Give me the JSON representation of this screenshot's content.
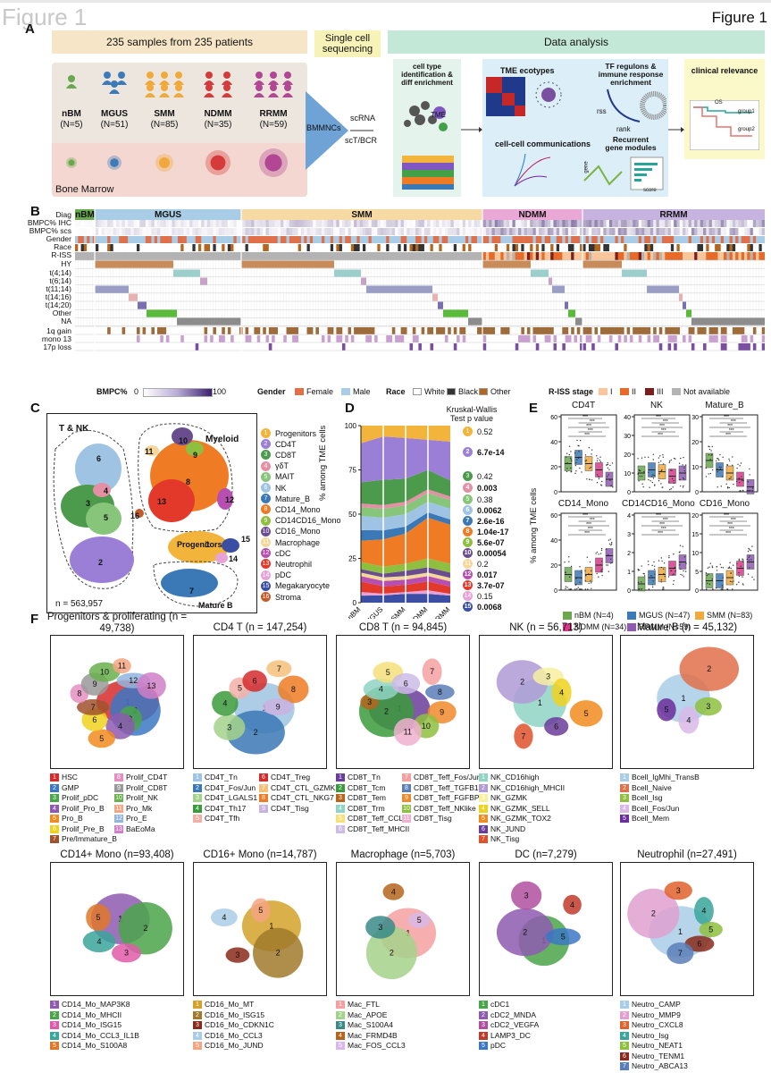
{
  "figure": {
    "title_left": "Figure 1",
    "title_right": "Figure 1"
  },
  "panelA": {
    "label": "A",
    "box1": "235 samples from 235 patients",
    "box2": "Single cell sequencing",
    "box3": "Data analysis",
    "groups": [
      {
        "name": "nBM",
        "n": "(N=5)",
        "color": "#6aa84f"
      },
      {
        "name": "MGUS",
        "n": "(N=51)",
        "color": "#3d7ab8"
      },
      {
        "name": "SMM",
        "n": "(N=85)",
        "color": "#f0a93a"
      },
      {
        "name": "NDMM",
        "n": "(N=35)",
        "color": "#d63b3b"
      },
      {
        "name": "RRMM",
        "n": "(N=59)",
        "color": "#b24793"
      }
    ],
    "bone_marrow": "Bone Marrow",
    "bmmnc": "BMMNCs",
    "scrna": "scRNA",
    "sctbcr": "scT/BCR",
    "cell_type": "cell type identification & diff enrichment",
    "tme_label": "TME",
    "tme_ecotypes": "TME ecotypes",
    "tf": "TF regulons & immune response enrichment",
    "rss": "rss",
    "rank": "rank",
    "cellcell": "cell-cell communications",
    "recurrent": "Recurrent gene modules",
    "gene": "gene",
    "score": "score",
    "clinical": "clinical relevance",
    "os": "OS",
    "group1": "group1",
    "group2": "group2"
  },
  "panelB": {
    "label": "B",
    "rows": [
      "Diag",
      "BMPC% IHC",
      "BMPC% scs",
      "Gender",
      "Race",
      "R-ISS",
      "HY",
      "t(4;14)",
      "t(6;14)",
      "t(11;14)",
      "t(14;16)",
      "t(14;20)",
      "Other",
      "NA",
      "1q gain",
      "mono 13",
      "17p loss"
    ],
    "diag": [
      "nBM",
      "MGUS",
      "SMM",
      "NDMM",
      "RRMM"
    ],
    "bmpc_title": "BMPC%",
    "bmpc_min": "0",
    "bmpc_max": "100",
    "gender_title": "Gender",
    "gender": [
      {
        "label": "Female",
        "color": "#e0704a"
      },
      {
        "label": "Male",
        "color": "#a9cde6"
      }
    ],
    "race_title": "Race",
    "race": [
      {
        "label": "White",
        "color": "#ffffff"
      },
      {
        "label": "Black",
        "color": "#333333"
      },
      {
        "label": "Other",
        "color": "#b5651d"
      }
    ],
    "riss_title": "R-ISS stage",
    "riss": [
      {
        "label": "I",
        "color": "#f9c59a"
      },
      {
        "label": "II",
        "color": "#e66b2b"
      },
      {
        "label": "III",
        "color": "#7a1f1f"
      },
      {
        "label": "Not available",
        "color": "#b3b3b3"
      }
    ]
  },
  "panelC": {
    "label": "C",
    "tnk": "T & NK",
    "myeloid": "Myeloid",
    "progenitors": "Progenitors",
    "matureb": "Mature B",
    "n": "n = 563,957",
    "clusters": [
      {
        "id": "1",
        "name": "Progenitors",
        "color": "#f2b43a"
      },
      {
        "id": "2",
        "name": "CD4T",
        "color": "#9b7fd6"
      },
      {
        "id": "3",
        "name": "CD8T",
        "color": "#4c9a4c"
      },
      {
        "id": "4",
        "name": "γδT",
        "color": "#e58fa5"
      },
      {
        "id": "5",
        "name": "MAIT",
        "color": "#86c57a"
      },
      {
        "id": "6",
        "name": "NK",
        "color": "#9fc4e3"
      },
      {
        "id": "7",
        "name": "Mature_B",
        "color": "#3b78b6"
      },
      {
        "id": "8",
        "name": "CD14_Mono",
        "color": "#ef7c24"
      },
      {
        "id": "9",
        "name": "CD14CD16_Mono",
        "color": "#8fbf3f"
      },
      {
        "id": "10",
        "name": "CD16_Mono",
        "color": "#6a4d8f"
      },
      {
        "id": "11",
        "name": "Macrophage",
        "color": "#f5d79a"
      },
      {
        "id": "12",
        "name": "cDC",
        "color": "#b64fb0"
      },
      {
        "id": "13",
        "name": "Neutrophil",
        "color": "#e3392a"
      },
      {
        "id": "14",
        "name": "pDC",
        "color": "#e7a3d8"
      },
      {
        "id": "15",
        "name": "Megakaryocyte",
        "color": "#3a4fa3"
      },
      {
        "id": "16",
        "name": "Stroma",
        "color": "#c45c2a"
      }
    ]
  },
  "panelD": {
    "label": "D",
    "ylabel": "% among TME cells",
    "test": "Kruskal-Wallis Test p value",
    "yticks": [
      "0",
      "25",
      "50",
      "75",
      "100"
    ],
    "groups": [
      "nBM",
      "MGUS",
      "SMM",
      "NDMM",
      "RRMM"
    ],
    "pvalues": [
      {
        "id": "1",
        "p": "0.52",
        "bold": false
      },
      {
        "id": "2",
        "p": "6.7e-14",
        "bold": true
      },
      {
        "id": "3",
        "p": "0.42",
        "bold": false
      },
      {
        "id": "4",
        "p": "0.003",
        "bold": true
      },
      {
        "id": "5",
        "p": "0.38",
        "bold": false
      },
      {
        "id": "6",
        "p": "0.0062",
        "bold": true
      },
      {
        "id": "7",
        "p": "2.6e-16",
        "bold": true
      },
      {
        "id": "8",
        "p": "1.04e-17",
        "bold": true
      },
      {
        "id": "9",
        "p": "5.6e-07",
        "bold": true
      },
      {
        "id": "10",
        "p": "0.00054",
        "bold": true
      },
      {
        "id": "11",
        "p": "0.2",
        "bold": false
      },
      {
        "id": "12",
        "p": "0.017",
        "bold": true
      },
      {
        "id": "13",
        "p": "3.7e-07",
        "bold": true
      },
      {
        "id": "14",
        "p": "0.15",
        "bold": false
      },
      {
        "id": "15",
        "p": "0.0068",
        "bold": true
      }
    ]
  },
  "panelE": {
    "label": "E",
    "ylabel": "% among TME cells",
    "plots": [
      {
        "title": "CD4T",
        "yticks": [
          "0",
          "20",
          "40",
          "60"
        ]
      },
      {
        "title": "NK",
        "yticks": [
          "0",
          "10",
          "20",
          "30",
          "40"
        ]
      },
      {
        "title": "Mature_B",
        "yticks": [
          "0",
          "10",
          "20",
          "30"
        ]
      },
      {
        "title": "CD14_Mono",
        "yticks": [
          "0",
          "20",
          "40",
          "60"
        ]
      },
      {
        "title": "CD14CD16_Mono",
        "yticks": [
          "0",
          "1",
          "2",
          "3",
          "4"
        ]
      },
      {
        "title": "CD16_Mono",
        "yticks": [
          "0",
          "5",
          "10",
          "15",
          "20"
        ]
      }
    ],
    "legend": [
      {
        "label": "nBM (N=4)",
        "color": "#6aa84f"
      },
      {
        "label": "MGUS (N=47)",
        "color": "#3d7ab8"
      },
      {
        "label": "SMM (N=83)",
        "color": "#f0a93a"
      },
      {
        "label": "NDMM (N=34)",
        "color": "#d63b8a"
      },
      {
        "label": "RRMM (N=59)",
        "color": "#8e5bb0"
      }
    ]
  },
  "panelF": {
    "label": "F",
    "umaps": [
      {
        "title": "Progenitors & proliferating (n = 49,738)",
        "legend": [
          {
            "id": "1",
            "name": "HSC",
            "color": "#d62b2b"
          },
          {
            "id": "2",
            "name": "GMP",
            "color": "#3b78c4"
          },
          {
            "id": "3",
            "name": "Prolif_pDC",
            "color": "#4aa54a"
          },
          {
            "id": "4",
            "name": "Prolif_Pro_B",
            "color": "#8e5bb0"
          },
          {
            "id": "5",
            "name": "Pro_B",
            "color": "#f28b1e"
          },
          {
            "id": "6",
            "name": "Prolif_Pre_B",
            "color": "#f0d21e"
          },
          {
            "id": "7",
            "name": "Pre/Immature_B",
            "color": "#a0522d"
          },
          {
            "id": "8",
            "name": "Prolif_CD4T",
            "color": "#e58fc1"
          },
          {
            "id": "9",
            "name": "Prolif_CD8T",
            "color": "#999999"
          },
          {
            "id": "10",
            "name": "Prolif_NK",
            "color": "#6ab04c"
          },
          {
            "id": "11",
            "name": "Pro_Mk",
            "color": "#f4a582"
          },
          {
            "id": "12",
            "name": "Pro_E",
            "color": "#92b5de"
          },
          {
            "id": "13",
            "name": "BaEoMa",
            "color": "#d07fc8"
          }
        ]
      },
      {
        "title": "CD4 T (n = 147,254)",
        "legend": [
          {
            "id": "1",
            "name": "CD4T_Tn",
            "color": "#9fc4e3"
          },
          {
            "id": "2",
            "name": "CD4T_Fos/Jun",
            "color": "#3b78b6"
          },
          {
            "id": "3",
            "name": "CD4T_LGALS1",
            "color": "#a5d28a"
          },
          {
            "id": "4",
            "name": "CD4T_Th17",
            "color": "#3b9a3b"
          },
          {
            "id": "5",
            "name": "CD4T_Tfh",
            "color": "#f2b0a8"
          },
          {
            "id": "6",
            "name": "CD4T_Treg",
            "color": "#d62b2b"
          },
          {
            "id": "7",
            "name": "CD4T_CTL_GZMK",
            "color": "#f5c07a"
          },
          {
            "id": "8",
            "name": "CD4T_CTL_NKG7",
            "color": "#ef7c24"
          },
          {
            "id": "9",
            "name": "CD4T_Tisg",
            "color": "#c9b3e0"
          }
        ]
      },
      {
        "title": "CD8 T (n = 94,845)",
        "legend": [
          {
            "id": "1",
            "name": "CD8T_Tn",
            "color": "#6a3d9a"
          },
          {
            "id": "2",
            "name": "CD8T_Tcm",
            "color": "#3b9a3b"
          },
          {
            "id": "3",
            "name": "CD8T_Tem",
            "color": "#b5651d"
          },
          {
            "id": "4",
            "name": "CD8T_Trm",
            "color": "#8fd4c4"
          },
          {
            "id": "5",
            "name": "CD8T_Teff_CCL4",
            "color": "#f5e07a"
          },
          {
            "id": "6",
            "name": "CD8T_Teff_MHCII",
            "color": "#cdbbe8"
          },
          {
            "id": "7",
            "name": "CD8T_Teff_Fos/Jun",
            "color": "#f4a0a0"
          },
          {
            "id": "8",
            "name": "CD8T_Teff_TGFB1",
            "color": "#5a7fb8"
          },
          {
            "id": "9",
            "name": "CD8T_Teff_FGFBP2",
            "color": "#ef8a2c"
          },
          {
            "id": "10",
            "name": "CD8T_Teff_NKlike",
            "color": "#8fbf3f"
          },
          {
            "id": "11",
            "name": "CD8T_Tisg",
            "color": "#f0b0d0"
          }
        ]
      },
      {
        "title": "NK (n = 56,713)",
        "legend": [
          {
            "id": "1",
            "name": "NK_CD16high",
            "color": "#8fd4c4"
          },
          {
            "id": "2",
            "name": "NK_CD16high_MHCII",
            "color": "#b09ad6"
          },
          {
            "id": "3",
            "name": "NK_GZMK",
            "color": "#f7f0a0"
          },
          {
            "id": "4",
            "name": "NK_GZMK_SELL",
            "color": "#f0d21e"
          },
          {
            "id": "5",
            "name": "NK_GZMK_TOX2",
            "color": "#f28b1e"
          },
          {
            "id": "6",
            "name": "NK_JUND",
            "color": "#6a3d9a"
          },
          {
            "id": "7",
            "name": "NK_Tisg",
            "color": "#e0522c"
          }
        ]
      },
      {
        "title": "Mature B (n = 45,132)",
        "legend": [
          {
            "id": "1",
            "name": "Bcell_IgMhi_TransB",
            "color": "#a9cde6"
          },
          {
            "id": "2",
            "name": "Bcell_Naive",
            "color": "#e0704a"
          },
          {
            "id": "3",
            "name": "Bcell_Isg",
            "color": "#8fbf3f"
          },
          {
            "id": "4",
            "name": "Bcell_Fos/Jun",
            "color": "#d9b8e8"
          },
          {
            "id": "5",
            "name": "Bcell_Mem",
            "color": "#6a2d9a"
          }
        ]
      },
      {
        "title": "CD14+ Mono (n=93,408)",
        "legend": [
          {
            "id": "1",
            "name": "CD14_Mo_MAP3K8",
            "color": "#8e5bb0"
          },
          {
            "id": "2",
            "name": "CD14_Mo_MHCII",
            "color": "#4aa54a"
          },
          {
            "id": "3",
            "name": "CD14_Mo_ISG15",
            "color": "#e05aa8"
          },
          {
            "id": "4",
            "name": "CD14_Mo_CCL3_IL1B",
            "color": "#3aa59a"
          },
          {
            "id": "5",
            "name": "CD14_Mo_S100A8",
            "color": "#e0782a"
          }
        ]
      },
      {
        "title": "CD16+ Mono (n=14,787)",
        "legend": [
          {
            "id": "1",
            "name": "CD16_Mo_MT",
            "color": "#d4a22a"
          },
          {
            "id": "2",
            "name": "CD16_Mo_ISG15",
            "color": "#a07a2a"
          },
          {
            "id": "3",
            "name": "CD16_Mo_CDKN1C",
            "color": "#8a2a1a"
          },
          {
            "id": "4",
            "name": "CD16_Mo_CCL3",
            "color": "#a9cde6"
          },
          {
            "id": "5",
            "name": "CD16_Mo_JUND",
            "color": "#f4a582"
          }
        ]
      },
      {
        "title": "Macrophage (n=5,703)",
        "legend": [
          {
            "id": "1",
            "name": "Mac_FTL",
            "color": "#f4a0a0"
          },
          {
            "id": "2",
            "name": "Mac_APOE",
            "color": "#a5d28a"
          },
          {
            "id": "3",
            "name": "Mac_S100A4",
            "color": "#3a8a8a"
          },
          {
            "id": "4",
            "name": "Mac_FRMD4B",
            "color": "#b5651d"
          },
          {
            "id": "5",
            "name": "Mac_FOS_CCL3",
            "color": "#d9b8e8"
          }
        ]
      },
      {
        "title": "DC (n=7,279)",
        "legend": [
          {
            "id": "1",
            "name": "cDC1",
            "color": "#4aa54a"
          },
          {
            "id": "2",
            "name": "cDC2_MNDA",
            "color": "#8e5bb0"
          },
          {
            "id": "3",
            "name": "cDC2_VEGFA",
            "color": "#b04fa0"
          },
          {
            "id": "4",
            "name": "LAMP3_DC",
            "color": "#c03a2a"
          },
          {
            "id": "5",
            "name": "pDC",
            "color": "#3b78c4"
          }
        ]
      },
      {
        "title": "Neutrophil (n=27,491)",
        "legend": [
          {
            "id": "1",
            "name": "Neutro_CAMP",
            "color": "#a9cde6"
          },
          {
            "id": "2",
            "name": "Neutro_MMP9",
            "color": "#e0a0d0"
          },
          {
            "id": "3",
            "name": "Neutro_CXCL8",
            "color": "#e0622c"
          },
          {
            "id": "4",
            "name": "Neutro_Isg",
            "color": "#3aa59a"
          },
          {
            "id": "5",
            "name": "Neutro_NEAT1",
            "color": "#8fbf3f"
          },
          {
            "id": "6",
            "name": "Neutro_TENM1",
            "color": "#8a2a1a"
          },
          {
            "id": "7",
            "name": "Neutro_ABCA13",
            "color": "#5a7fb8"
          }
        ]
      }
    ]
  }
}
